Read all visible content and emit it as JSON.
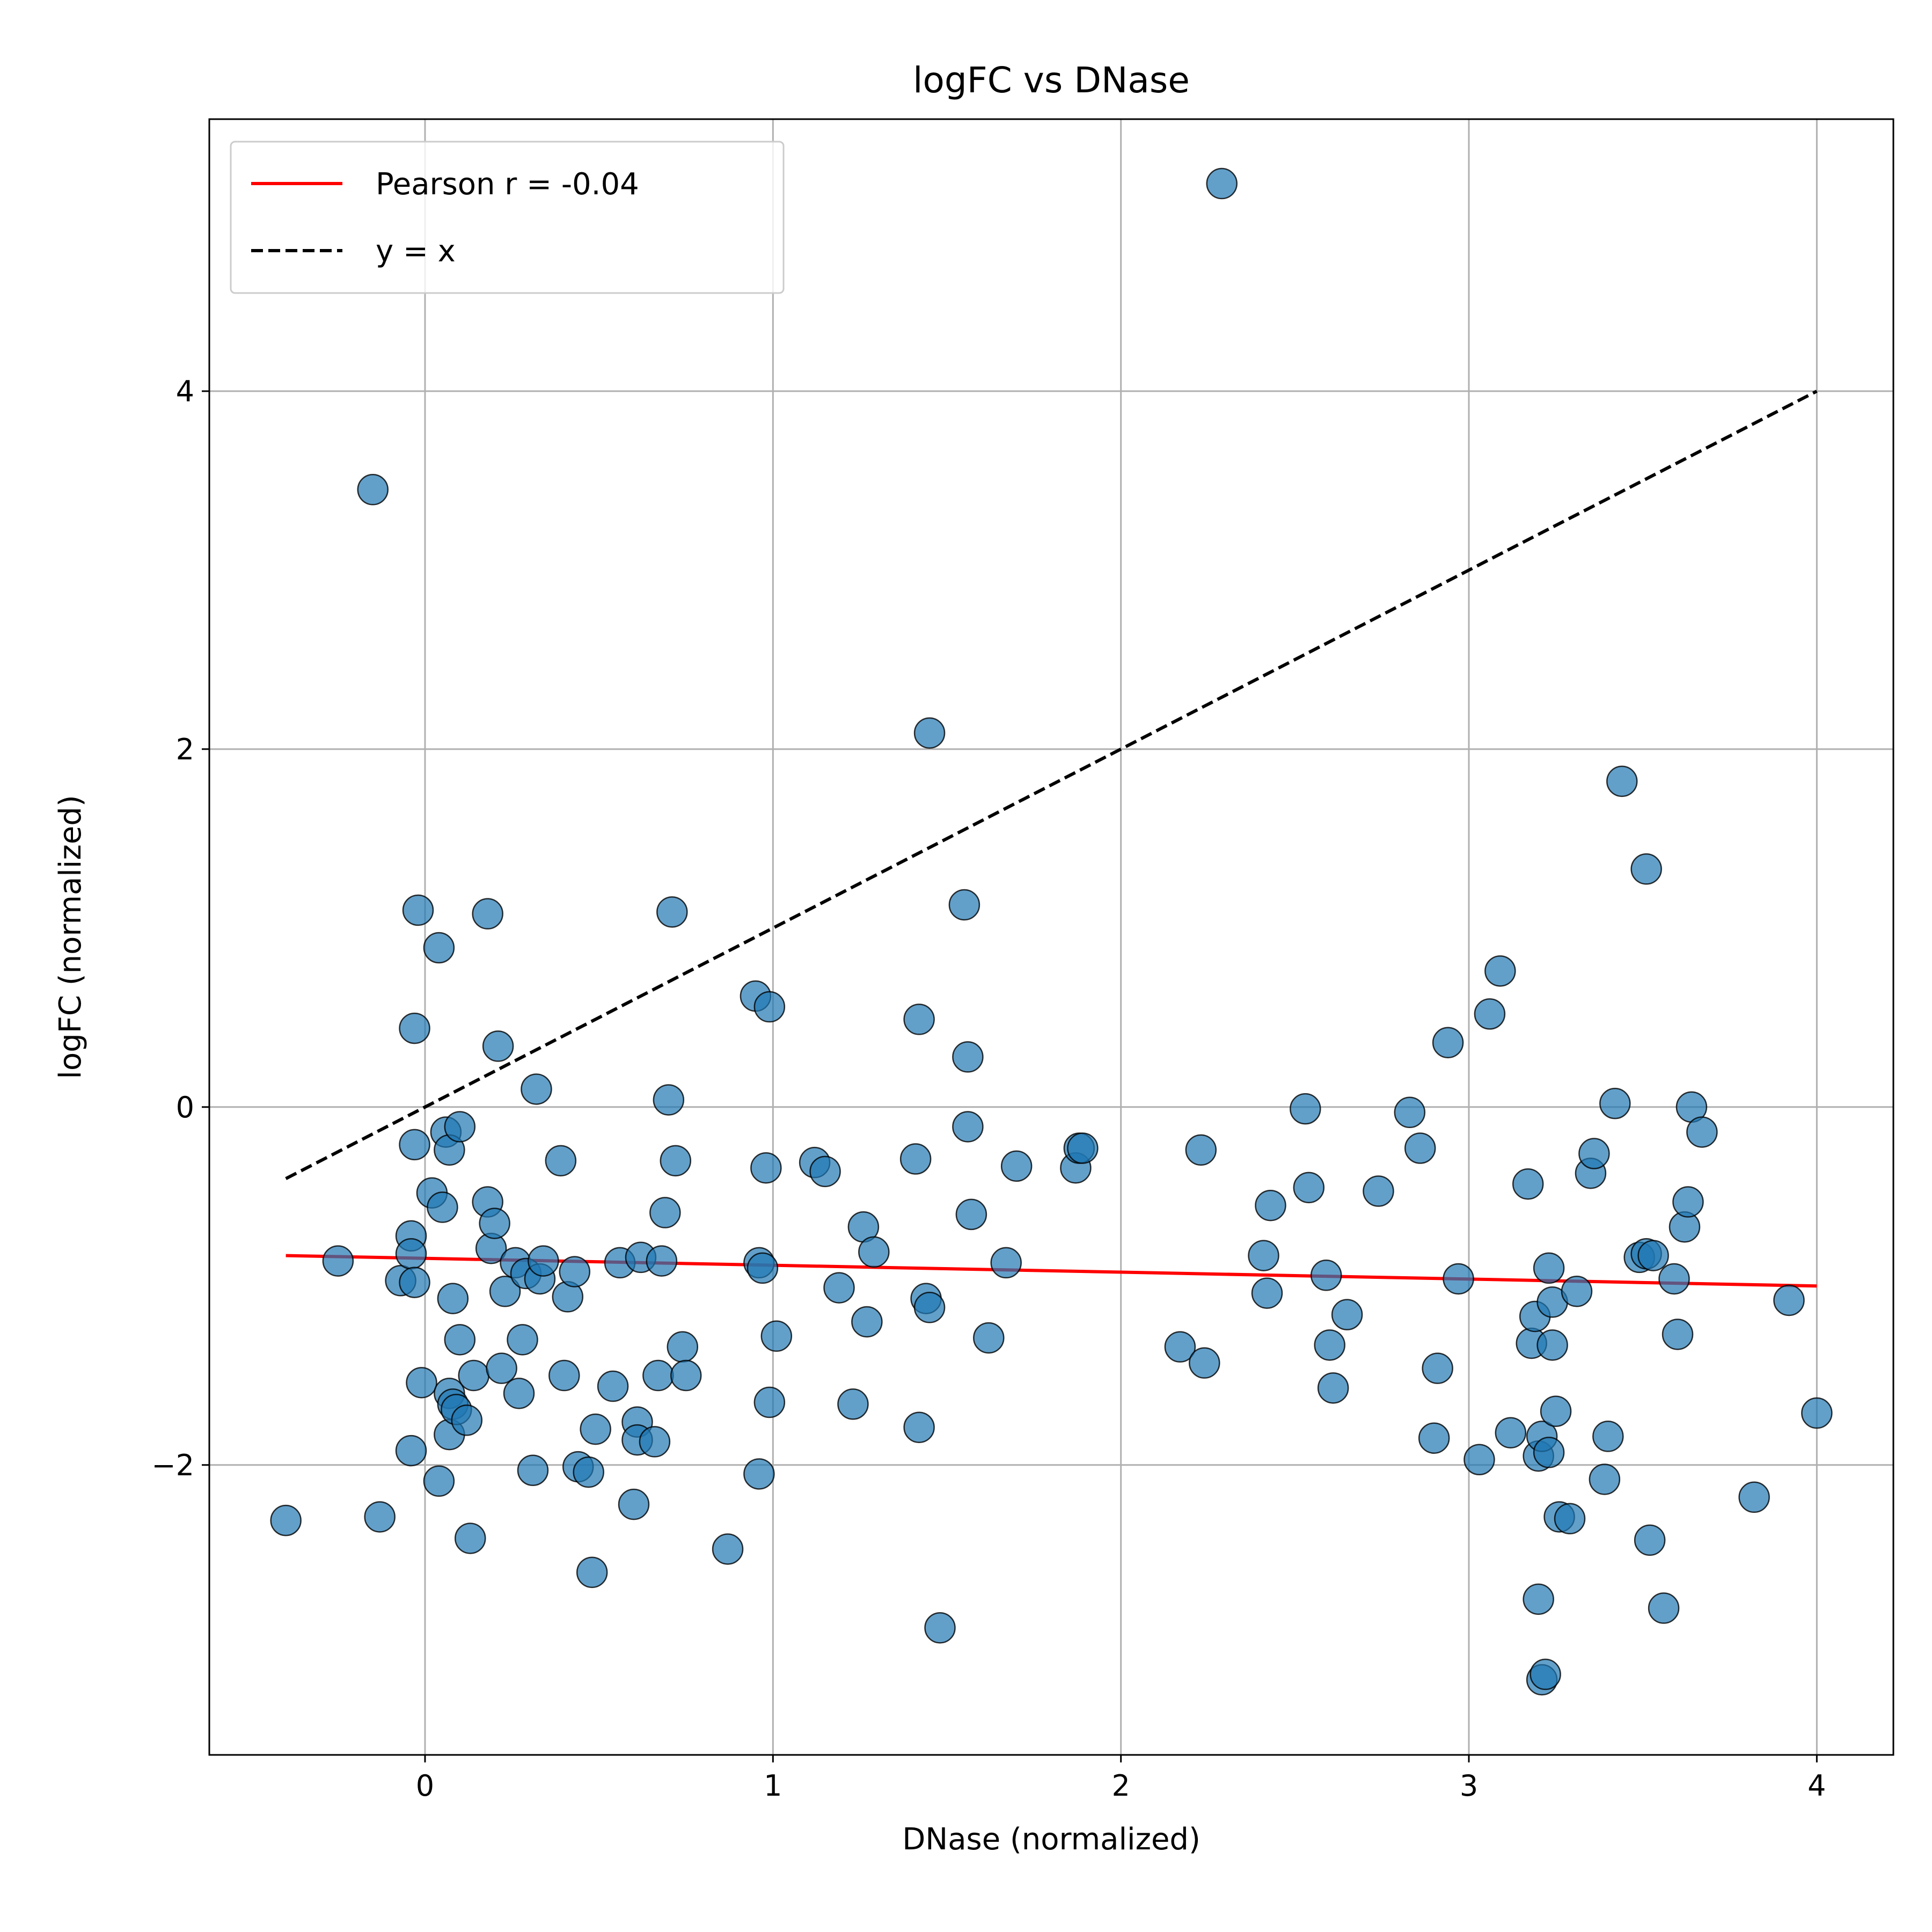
{
  "chart_data": {
    "type": "scatter",
    "title": "logFC vs DNase",
    "xlabel": "DNase (normalized)",
    "ylabel": "logFC (normalized)",
    "xlim": [
      -0.62,
      4.22
    ],
    "ylim": [
      -3.62,
      5.52
    ],
    "xticks": [
      0,
      1,
      2,
      3,
      4
    ],
    "yticks": [
      -2,
      0,
      2,
      4
    ],
    "xtick_labels": [
      "0",
      "1",
      "2",
      "3",
      "4"
    ],
    "ytick_labels": [
      "−2",
      "0",
      "2",
      "4"
    ],
    "grid": true,
    "legend_position": "top-left",
    "colors": {
      "points": "#1f77b4",
      "fit": "#ff0000",
      "identity": "#000000",
      "grid": "#b0b0b0"
    },
    "legend": [
      {
        "label": "Pearson r = -0.04",
        "style": "solid",
        "color": "#ff0000"
      },
      {
        "label": "y = x",
        "style": "dashed",
        "color": "#000000"
      }
    ],
    "fit_line": {
      "x": [
        -0.4,
        4.0
      ],
      "y": [
        -0.83,
        -1.0
      ]
    },
    "identity_line": {
      "x": [
        -0.4,
        4.0
      ],
      "y": [
        -0.4,
        4.0
      ]
    },
    "points": [
      [
        -0.4,
        -2.31
      ],
      [
        -0.25,
        -0.86
      ],
      [
        -0.15,
        3.45
      ],
      [
        -0.13,
        -2.29
      ],
      [
        -0.07,
        -0.97
      ],
      [
        -0.04,
        -0.72
      ],
      [
        -0.04,
        -0.82
      ],
      [
        -0.04,
        -1.92
      ],
      [
        -0.03,
        -0.98
      ],
      [
        -0.03,
        0.44
      ],
      [
        -0.03,
        -0.21
      ],
      [
        -0.02,
        1.1
      ],
      [
        -0.01,
        -1.54
      ],
      [
        0.02,
        -0.48
      ],
      [
        0.04,
        -2.09
      ],
      [
        0.04,
        0.89
      ],
      [
        0.05,
        -0.56
      ],
      [
        0.06,
        -0.14
      ],
      [
        0.07,
        -0.24
      ],
      [
        0.07,
        -1.6
      ],
      [
        0.08,
        -1.66
      ],
      [
        0.07,
        -1.83
      ],
      [
        0.08,
        -1.07
      ],
      [
        0.09,
        -1.69
      ],
      [
        0.1,
        -1.3
      ],
      [
        0.1,
        -0.11
      ],
      [
        0.12,
        -1.75
      ],
      [
        0.13,
        -2.41
      ],
      [
        0.14,
        -1.5
      ],
      [
        0.18,
        1.08
      ],
      [
        0.18,
        -0.53
      ],
      [
        0.19,
        -0.79
      ],
      [
        0.2,
        -0.65
      ],
      [
        0.21,
        0.34
      ],
      [
        0.22,
        -1.46
      ],
      [
        0.23,
        -1.03
      ],
      [
        0.26,
        -0.87
      ],
      [
        0.27,
        -1.6
      ],
      [
        0.28,
        -1.3
      ],
      [
        0.29,
        -0.93
      ],
      [
        0.31,
        -2.03
      ],
      [
        0.32,
        0.1
      ],
      [
        0.33,
        -0.96
      ],
      [
        0.34,
        -0.86
      ],
      [
        0.39,
        -0.3
      ],
      [
        0.4,
        -1.5
      ],
      [
        0.41,
        -1.06
      ],
      [
        0.43,
        -0.92
      ],
      [
        0.44,
        -2.01
      ],
      [
        0.47,
        -2.04
      ],
      [
        0.48,
        -2.6
      ],
      [
        0.49,
        -1.8
      ],
      [
        0.54,
        -1.56
      ],
      [
        0.56,
        -0.87
      ],
      [
        0.6,
        -2.22
      ],
      [
        0.61,
        -1.76
      ],
      [
        0.61,
        -1.86
      ],
      [
        0.62,
        -0.84
      ],
      [
        0.66,
        -1.87
      ],
      [
        0.67,
        -1.5
      ],
      [
        0.68,
        -0.86
      ],
      [
        0.69,
        -0.59
      ],
      [
        0.7,
        0.04
      ],
      [
        0.71,
        1.09
      ],
      [
        0.72,
        -0.3
      ],
      [
        0.74,
        -1.34
      ],
      [
        0.75,
        -1.5
      ],
      [
        0.87,
        -2.47
      ],
      [
        0.95,
        0.62
      ],
      [
        0.96,
        -0.87
      ],
      [
        0.97,
        -0.9
      ],
      [
        0.96,
        -2.05
      ],
      [
        0.98,
        -0.34
      ],
      [
        0.99,
        0.56
      ],
      [
        0.99,
        -1.65
      ],
      [
        1.01,
        -1.28
      ],
      [
        1.12,
        -0.31
      ],
      [
        1.15,
        -0.36
      ],
      [
        1.19,
        -1.01
      ],
      [
        1.23,
        -1.66
      ],
      [
        1.26,
        -0.67
      ],
      [
        1.27,
        -1.2
      ],
      [
        1.29,
        -0.81
      ],
      [
        1.41,
        -0.29
      ],
      [
        1.42,
        0.49
      ],
      [
        1.42,
        -1.79
      ],
      [
        1.44,
        -1.07
      ],
      [
        1.45,
        2.09
      ],
      [
        1.45,
        -1.12
      ],
      [
        1.48,
        -2.91
      ],
      [
        1.55,
        1.13
      ],
      [
        1.56,
        0.28
      ],
      [
        1.56,
        -0.11
      ],
      [
        1.57,
        -0.6
      ],
      [
        1.62,
        -1.29
      ],
      [
        1.67,
        -0.87
      ],
      [
        1.7,
        -0.33
      ],
      [
        1.87,
        -0.34
      ],
      [
        1.88,
        -0.23
      ],
      [
        1.89,
        -0.23
      ],
      [
        2.17,
        -1.34
      ],
      [
        2.23,
        -0.24
      ],
      [
        2.24,
        -1.43
      ],
      [
        2.29,
        5.16
      ],
      [
        2.41,
        -0.83
      ],
      [
        2.42,
        -1.04
      ],
      [
        2.43,
        -0.55
      ],
      [
        2.53,
        -0.01
      ],
      [
        2.54,
        -0.45
      ],
      [
        2.59,
        -0.94
      ],
      [
        2.6,
        -1.33
      ],
      [
        2.61,
        -1.57
      ],
      [
        2.65,
        -1.16
      ],
      [
        2.74,
        -0.47
      ],
      [
        2.83,
        -0.03
      ],
      [
        2.86,
        -0.23
      ],
      [
        2.9,
        -1.85
      ],
      [
        2.91,
        -1.46
      ],
      [
        2.94,
        0.36
      ],
      [
        2.97,
        -0.96
      ],
      [
        3.03,
        -1.97
      ],
      [
        3.06,
        0.52
      ],
      [
        3.09,
        0.76
      ],
      [
        3.12,
        -1.82
      ],
      [
        3.17,
        -0.43
      ],
      [
        3.18,
        -1.32
      ],
      [
        3.19,
        -1.17
      ],
      [
        3.2,
        -1.95
      ],
      [
        3.2,
        -2.75
      ],
      [
        3.21,
        -3.2
      ],
      [
        3.21,
        -1.84
      ],
      [
        3.22,
        -3.17
      ],
      [
        3.23,
        -0.9
      ],
      [
        3.23,
        -1.93
      ],
      [
        3.24,
        -1.09
      ],
      [
        3.24,
        -1.33
      ],
      [
        3.25,
        -1.7
      ],
      [
        3.26,
        -2.29
      ],
      [
        3.29,
        -2.3
      ],
      [
        3.31,
        -1.03
      ],
      [
        3.35,
        -0.37
      ],
      [
        3.36,
        -0.26
      ],
      [
        3.39,
        -2.08
      ],
      [
        3.4,
        -1.84
      ],
      [
        3.42,
        0.02
      ],
      [
        3.44,
        1.82
      ],
      [
        3.49,
        -0.84
      ],
      [
        3.51,
        -0.82
      ],
      [
        3.51,
        1.33
      ],
      [
        3.52,
        -2.42
      ],
      [
        3.53,
        -0.83
      ],
      [
        3.56,
        -2.8
      ],
      [
        3.59,
        -0.96
      ],
      [
        3.6,
        -1.27
      ],
      [
        3.62,
        -0.67
      ],
      [
        3.63,
        -0.53
      ],
      [
        3.64,
        0.0
      ],
      [
        3.67,
        -0.14
      ],
      [
        3.82,
        -2.18
      ],
      [
        3.92,
        -1.08
      ],
      [
        4.0,
        -1.71
      ]
    ]
  }
}
